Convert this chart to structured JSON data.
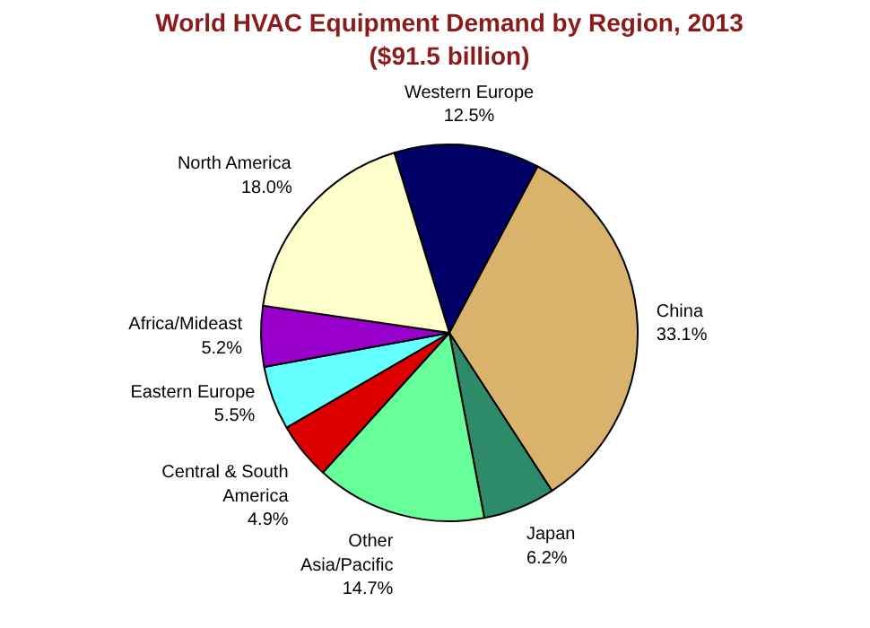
{
  "chart_data": {
    "type": "pie",
    "title": "World HVAC Equipment Demand by Region, 2013",
    "subtitle": "($91.5 billion)",
    "categories": [
      "Western Europe",
      "China",
      "Japan",
      "Other Asia/Pacific",
      "Central & South America",
      "Eastern Europe",
      "Africa/Mideast",
      "North America"
    ],
    "values": [
      12.5,
      33.1,
      6.2,
      14.7,
      4.9,
      5.5,
      5.2,
      18.0
    ],
    "colors": [
      "#000066",
      "#d9b36b",
      "#2e8b6a",
      "#66ff99",
      "#dd0000",
      "#66ffff",
      "#9900cc",
      "#ffffcc"
    ],
    "value_labels": [
      "12.5%",
      "33.1%",
      "6.2%",
      "14.7%",
      "4.9%",
      "5.5%",
      "5.2%",
      "18.0%"
    ]
  }
}
